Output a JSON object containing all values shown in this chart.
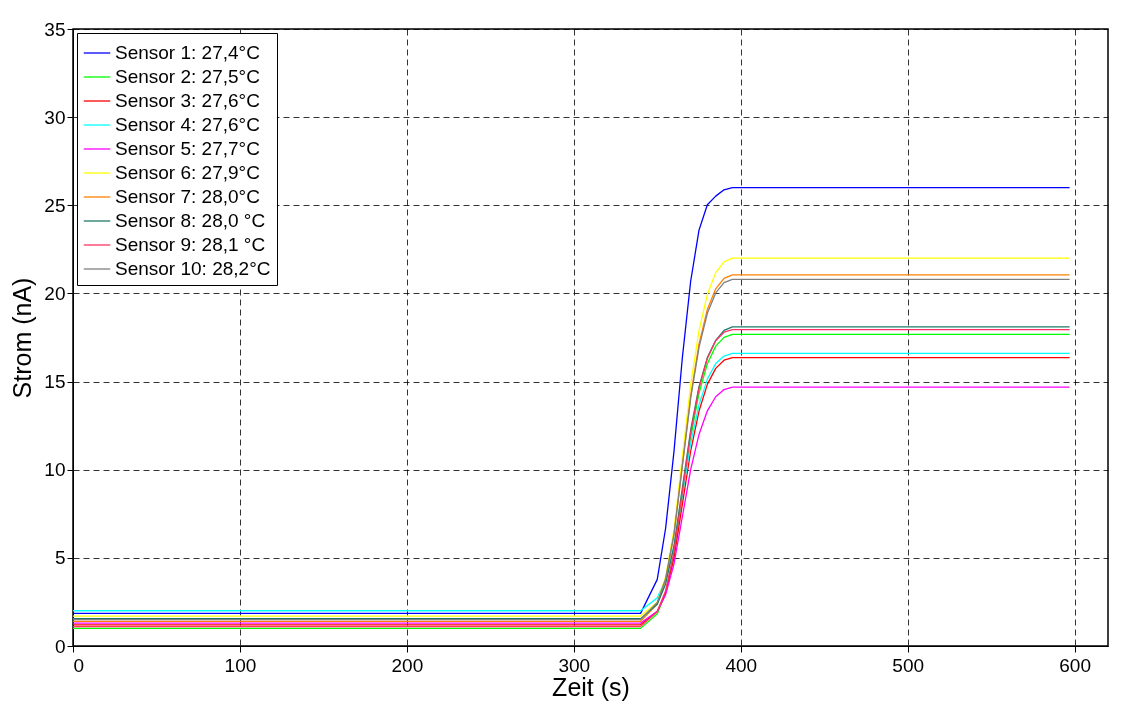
{
  "chart_data": {
    "type": "line",
    "xlabel": "Zeit (s)",
    "ylabel": "Strom (nA)",
    "x": [
      0,
      340,
      350,
      355,
      360,
      365,
      370,
      375,
      380,
      385,
      390,
      395,
      597
    ],
    "xlim": [
      0,
      620
    ],
    "ylim": [
      0,
      35
    ],
    "xticks": [
      0,
      100,
      200,
      300,
      400,
      500,
      600
    ],
    "yticks": [
      0,
      5,
      10,
      15,
      20,
      25,
      30,
      35
    ],
    "grid": true,
    "legend": "top left",
    "marker": "none",
    "line_style": "solid",
    "series": [
      {
        "name": "Sensor 1: 27,4°C",
        "color": "#0000ff",
        "values": [
          1.85,
          1.85,
          3.78,
          6.68,
          11.03,
          16.34,
          20.69,
          23.59,
          25.03,
          25.52,
          25.88,
          26.0,
          26.0
        ]
      },
      {
        "name": "Sensor 2: 27,5°C",
        "color": "#00ff00",
        "values": [
          1.0,
          1.0,
          1.83,
          3.0,
          5.17,
          8.51,
          11.84,
          14.34,
          16.01,
          17.01,
          17.51,
          17.68,
          17.68
        ]
      },
      {
        "name": "Sensor 3: 27,6°C",
        "color": "#ff0000",
        "values": [
          1.2,
          1.2,
          1.96,
          3.02,
          4.99,
          8.02,
          11.05,
          13.33,
          14.84,
          15.75,
          16.21,
          16.36,
          16.36
        ]
      },
      {
        "name": "Sensor 4: 27,6°C",
        "color": "#00ffff",
        "values": [
          2.0,
          2.0,
          2.73,
          3.75,
          5.65,
          8.57,
          11.49,
          13.68,
          15.14,
          16.02,
          16.45,
          16.6,
          16.6
        ]
      },
      {
        "name": "Sensor 5: 27,7°C",
        "color": "#ff00ff",
        "values": [
          1.3,
          1.3,
          1.97,
          2.91,
          4.65,
          7.32,
          10.0,
          12.0,
          13.34,
          14.14,
          14.55,
          14.68,
          14.68
        ]
      },
      {
        "name": "Sensor 6: 27,9°C",
        "color": "#ffff00",
        "values": [
          1.7,
          1.7,
          2.48,
          3.92,
          6.59,
          10.7,
          14.81,
          17.89,
          19.95,
          21.18,
          21.79,
          22.0,
          22.0
        ]
      },
      {
        "name": "Sensor 7: 28,0°C",
        "color": "#ff8000",
        "values": [
          1.4,
          1.4,
          2.38,
          3.76,
          6.31,
          10.24,
          14.17,
          17.12,
          19.09,
          20.26,
          20.85,
          21.05,
          21.05
        ]
      },
      {
        "name": "Sensor 8: 28,0 °C",
        "color": "#1f7a6a",
        "values": [
          1.55,
          1.55,
          2.37,
          3.52,
          5.66,
          8.95,
          12.24,
          14.71,
          16.36,
          17.34,
          17.9,
          18.1,
          18.1
        ]
      },
      {
        "name": "Sensor 9: 28,1 °C",
        "color": "#ff3366",
        "values": [
          1.1,
          1.1,
          1.95,
          3.13,
          5.33,
          8.71,
          12.09,
          14.62,
          16.31,
          17.32,
          17.8,
          17.95,
          17.95
        ]
      },
      {
        "name": "Sensor 10: 28,2°C",
        "color": "#808080",
        "values": [
          1.5,
          1.5,
          2.47,
          3.82,
          6.33,
          10.19,
          14.05,
          16.94,
          18.87,
          20.03,
          20.61,
          20.8,
          20.8
        ]
      }
    ]
  }
}
